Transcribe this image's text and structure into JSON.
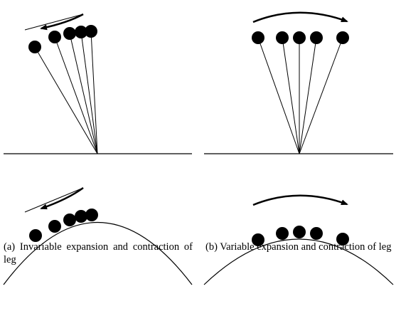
{
  "captions": {
    "a": "(a) Invariable expansion and contraction of leg",
    "b": "(b) Variable expansion and contraction of leg"
  }
}
